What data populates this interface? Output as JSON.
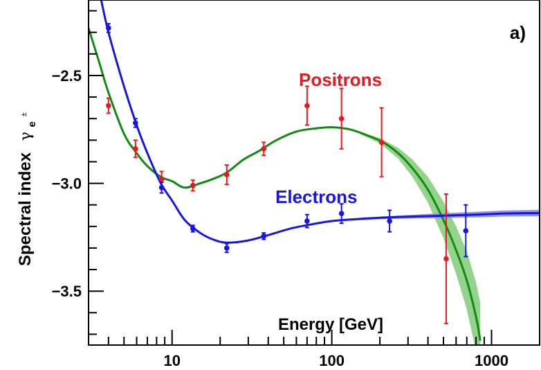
{
  "chart_data": {
    "type": "scatter",
    "panel_label": "a)",
    "xlabel": "Energy [GeV]",
    "ylabel": "Spectral index",
    "ylabel_symbol": "γ",
    "ylabel_sub": "e",
    "ylabel_sup": "±",
    "x_scale": "log",
    "xlim": [
      3,
      2000
    ],
    "ylim": [
      -3.75,
      -2.15
    ],
    "x_ticks": [
      10,
      100,
      1000
    ],
    "x_tick_labels": [
      "10",
      "100",
      "1000"
    ],
    "y_ticks": [
      -2.5,
      -3.0,
      -3.5
    ],
    "y_tick_labels": [
      "−2.5",
      "−3.0",
      "−3.5"
    ],
    "grid": false,
    "colors": {
      "positrons_points": "#e8191e",
      "positrons_fit": "#108a10",
      "positrons_band": "#93d38c",
      "electrons": "#1616e0",
      "electrons_band": "#8a8aee"
    },
    "series": [
      {
        "name": "Positrons",
        "points": [
          {
            "x": 4.0,
            "y": -2.64,
            "err": 0.035
          },
          {
            "x": 5.9,
            "y": -2.84,
            "err": 0.04
          },
          {
            "x": 8.6,
            "y": -2.98,
            "err": 0.035
          },
          {
            "x": 13.5,
            "y": -3.01,
            "err": 0.025
          },
          {
            "x": 22,
            "y": -2.96,
            "err": 0.045
          },
          {
            "x": 37.5,
            "y": -2.84,
            "err": 0.03
          },
          {
            "x": 70,
            "y": -2.64,
            "err": 0.09
          },
          {
            "x": 115,
            "y": -2.7,
            "err": 0.14
          },
          {
            "x": 205,
            "y": -2.81,
            "err": 0.16
          },
          {
            "x": 520,
            "y": -3.35,
            "err": 0.3
          }
        ],
        "fit": [
          [
            3.0,
            -2.28
          ],
          [
            3.5,
            -2.44
          ],
          [
            4.0,
            -2.58
          ],
          [
            5.0,
            -2.77
          ],
          [
            6.0,
            -2.86
          ],
          [
            7.0,
            -2.92
          ],
          [
            8.5,
            -2.97
          ],
          [
            10.0,
            -2.99
          ],
          [
            12.0,
            -3.02
          ],
          [
            15.0,
            -3.0
          ],
          [
            18.0,
            -2.98
          ],
          [
            22.0,
            -2.95
          ],
          [
            28.0,
            -2.89
          ],
          [
            35.0,
            -2.85
          ],
          [
            45.0,
            -2.8
          ],
          [
            60.0,
            -2.76
          ],
          [
            80.0,
            -2.745
          ],
          [
            100.0,
            -2.74
          ],
          [
            130.0,
            -2.75
          ],
          [
            170.0,
            -2.78
          ],
          [
            210.0,
            -2.81
          ],
          [
            260.0,
            -2.86
          ],
          [
            320.0,
            -2.93
          ],
          [
            400.0,
            -3.03
          ],
          [
            500.0,
            -3.17
          ],
          [
            600.0,
            -3.31
          ],
          [
            700.0,
            -3.45
          ],
          [
            800.0,
            -3.62
          ],
          [
            850.0,
            -3.73
          ]
        ],
        "band": [
          {
            "x": 150,
            "half": 0.005
          },
          {
            "x": 200,
            "half": 0.012
          },
          {
            "x": 260,
            "half": 0.025
          },
          {
            "x": 320,
            "half": 0.04
          },
          {
            "x": 400,
            "half": 0.06
          },
          {
            "x": 500,
            "half": 0.085
          },
          {
            "x": 600,
            "half": 0.11
          },
          {
            "x": 700,
            "half": 0.135
          },
          {
            "x": 800,
            "half": 0.16
          },
          {
            "x": 850,
            "half": 0.175
          }
        ]
      },
      {
        "name": "Electrons",
        "points": [
          {
            "x": 4.0,
            "y": -2.28,
            "err": 0.02
          },
          {
            "x": 5.9,
            "y": -2.72,
            "err": 0.02
          },
          {
            "x": 8.6,
            "y": -3.02,
            "err": 0.025
          },
          {
            "x": 13.5,
            "y": -3.21,
            "err": 0.015
          },
          {
            "x": 22,
            "y": -3.3,
            "err": 0.02
          },
          {
            "x": 37.5,
            "y": -3.245,
            "err": 0.015
          },
          {
            "x": 70,
            "y": -3.175,
            "err": 0.03
          },
          {
            "x": 115,
            "y": -3.14,
            "err": 0.045
          },
          {
            "x": 230,
            "y": -3.175,
            "err": 0.05
          },
          {
            "x": 690,
            "y": -3.22,
            "err": 0.12
          }
        ],
        "fit": [
          [
            3.6,
            -2.15
          ],
          [
            4.0,
            -2.3
          ],
          [
            5.0,
            -2.55
          ],
          [
            6.0,
            -2.73
          ],
          [
            7.0,
            -2.86
          ],
          [
            8.5,
            -3.0
          ],
          [
            10.0,
            -3.08
          ],
          [
            12.0,
            -3.17
          ],
          [
            15.0,
            -3.23
          ],
          [
            18.0,
            -3.26
          ],
          [
            22.0,
            -3.275
          ],
          [
            30.0,
            -3.265
          ],
          [
            40.0,
            -3.24
          ],
          [
            55.0,
            -3.21
          ],
          [
            75.0,
            -3.19
          ],
          [
            100.0,
            -3.175
          ],
          [
            150.0,
            -3.165
          ],
          [
            200.0,
            -3.16
          ],
          [
            300.0,
            -3.155
          ],
          [
            500.0,
            -3.15
          ],
          [
            800.0,
            -3.145
          ],
          [
            1200.0,
            -3.14
          ],
          [
            2000.0,
            -3.138
          ]
        ],
        "band": [
          {
            "x": 100,
            "half": 0.003
          },
          {
            "x": 200,
            "half": 0.006
          },
          {
            "x": 400,
            "half": 0.01
          },
          {
            "x": 800,
            "half": 0.013
          },
          {
            "x": 1200,
            "half": 0.014
          },
          {
            "x": 2000,
            "half": 0.015
          }
        ]
      }
    ]
  }
}
